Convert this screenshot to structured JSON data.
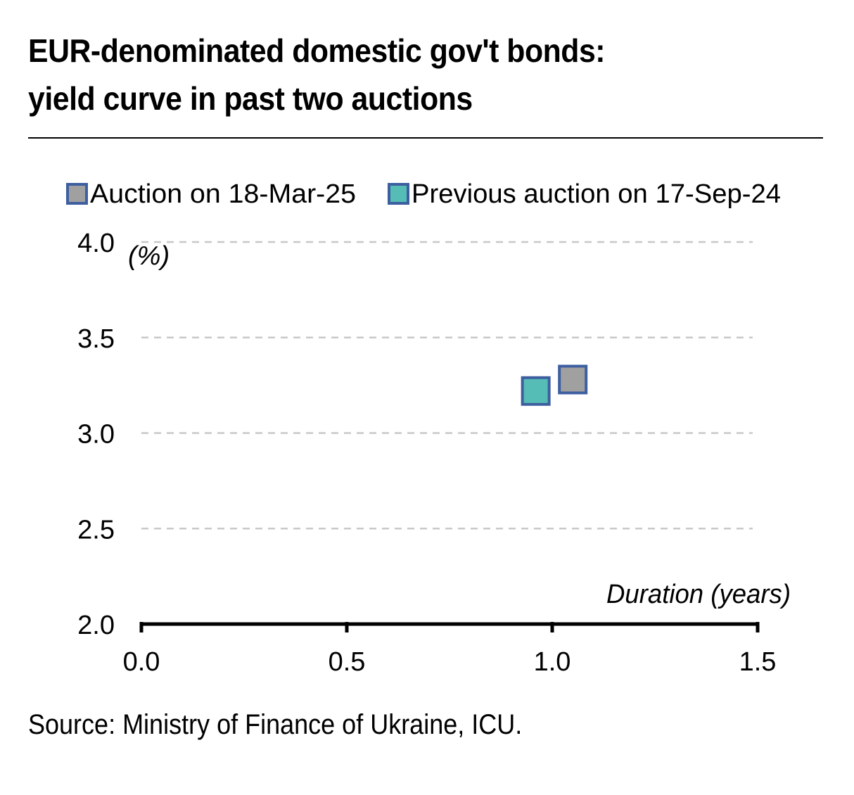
{
  "title": {
    "line1": "EUR-denominated domestic gov't bonds:",
    "line2": "yield curve in past two auctions"
  },
  "source": "Source: Ministry of Finance of Ukraine, ICU.",
  "chart_data": {
    "type": "scatter",
    "title": "EUR-denominated domestic gov't bonds: yield curve in past two auctions",
    "xlabel": "Duration (years)",
    "ylabel": "(%)",
    "xlim": [
      0.0,
      1.5
    ],
    "ylim": [
      2.0,
      4.0
    ],
    "x_ticks": [
      "0.0",
      "0.5",
      "1.0",
      "1.5"
    ],
    "y_ticks": [
      "2.0",
      "2.5",
      "3.0",
      "3.5",
      "4.0"
    ],
    "grid": "horizontal dashed",
    "legend_position": "top",
    "series": [
      {
        "name": "Auction on 18-Mar-25",
        "color": "#a0a0a0",
        "border_color": "#3d5fa0",
        "points": [
          {
            "x": 1.05,
            "y": 3.28
          }
        ]
      },
      {
        "name": "Previous auction on 17-Sep-24",
        "color": "#55bdb5",
        "border_color": "#3d5fa0",
        "points": [
          {
            "x": 0.96,
            "y": 3.22
          }
        ]
      }
    ]
  }
}
